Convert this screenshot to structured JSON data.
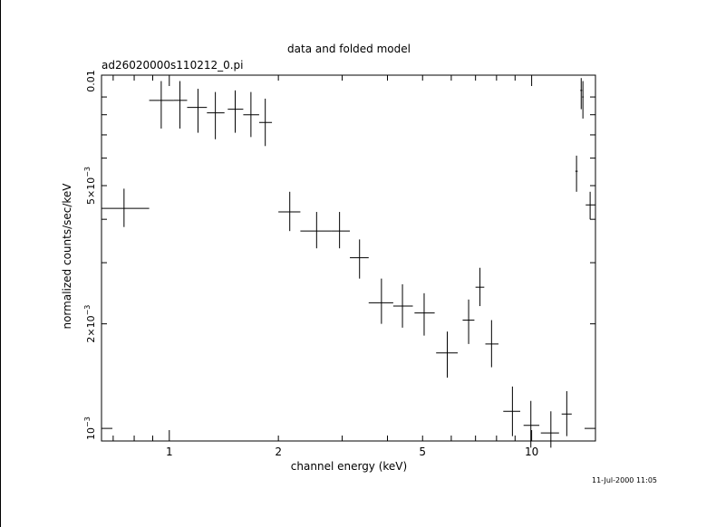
{
  "chart_data": {
    "type": "scatter",
    "title": "data and folded model",
    "subtitle": "ad26020000s110212_0.pi",
    "xlabel": "channel energy (keV)",
    "ylabel": "normalized counts/sec/keV",
    "timestamp": "11-Jul-2000 11:05",
    "x_scale": "log",
    "y_scale": "log",
    "xlim": [
      0.65,
      15.0
    ],
    "ylim": [
      0.00092,
      0.0104
    ],
    "grid": false,
    "x_ticks": [
      {
        "value": 1,
        "label": "1"
      },
      {
        "value": 2,
        "label": "2"
      },
      {
        "value": 5,
        "label": "5"
      },
      {
        "value": 10,
        "label": "10"
      }
    ],
    "y_ticks": [
      {
        "value": 0.001,
        "mant": "10",
        "exp": "−3"
      },
      {
        "value": 0.002,
        "mant": "2×10",
        "exp": "−3"
      },
      {
        "value": 0.005,
        "mant": "5×10",
        "exp": "−3"
      },
      {
        "value": 0.01,
        "mant": "0.01",
        "exp": ""
      }
    ],
    "series": [
      {
        "points": [
          {
            "x": 0.75,
            "xlo": 0.65,
            "xhi": 0.88,
            "y": 0.0043,
            "ylo": 0.0038,
            "yhi": 0.0049
          },
          {
            "x": 0.95,
            "xlo": 0.88,
            "xhi": 1.03,
            "y": 0.0088,
            "ylo": 0.0073,
            "yhi": 0.01
          },
          {
            "x": 1.07,
            "xlo": 1.03,
            "xhi": 1.12,
            "y": 0.0088,
            "ylo": 0.0073,
            "yhi": 0.01
          },
          {
            "x": 1.2,
            "xlo": 1.12,
            "xhi": 1.27,
            "y": 0.0084,
            "ylo": 0.0071,
            "yhi": 0.0095
          },
          {
            "x": 1.34,
            "xlo": 1.27,
            "xhi": 1.42,
            "y": 0.0081,
            "ylo": 0.0068,
            "yhi": 0.0093
          },
          {
            "x": 1.52,
            "xlo": 1.45,
            "xhi": 1.6,
            "y": 0.0083,
            "ylo": 0.0071,
            "yhi": 0.0094
          },
          {
            "x": 1.68,
            "xlo": 1.6,
            "xhi": 1.77,
            "y": 0.008,
            "ylo": 0.0069,
            "yhi": 0.0093
          },
          {
            "x": 1.84,
            "xlo": 1.77,
            "xhi": 1.92,
            "y": 0.0076,
            "ylo": 0.0065,
            "yhi": 0.0089
          },
          {
            "x": 2.15,
            "xlo": 2.0,
            "xhi": 2.3,
            "y": 0.0042,
            "ylo": 0.0037,
            "yhi": 0.0048
          },
          {
            "x": 2.55,
            "xlo": 2.3,
            "xhi": 2.8,
            "y": 0.0037,
            "ylo": 0.0033,
            "yhi": 0.0042
          },
          {
            "x": 2.95,
            "xlo": 2.8,
            "xhi": 3.15,
            "y": 0.0037,
            "ylo": 0.0033,
            "yhi": 0.0042
          },
          {
            "x": 3.35,
            "xlo": 3.15,
            "xhi": 3.55,
            "y": 0.0031,
            "ylo": 0.0027,
            "yhi": 0.0035
          },
          {
            "x": 3.85,
            "xlo": 3.55,
            "xhi": 4.15,
            "y": 0.0023,
            "ylo": 0.002,
            "yhi": 0.0027
          },
          {
            "x": 4.4,
            "xlo": 4.15,
            "xhi": 4.7,
            "y": 0.00225,
            "ylo": 0.00195,
            "yhi": 0.0026
          },
          {
            "x": 5.05,
            "xlo": 4.75,
            "xhi": 5.4,
            "y": 0.00215,
            "ylo": 0.00185,
            "yhi": 0.00245
          },
          {
            "x": 5.85,
            "xlo": 5.45,
            "xhi": 6.25,
            "y": 0.00165,
            "ylo": 0.0014,
            "yhi": 0.0019
          },
          {
            "x": 6.7,
            "xlo": 6.45,
            "xhi": 6.95,
            "y": 0.00205,
            "ylo": 0.00175,
            "yhi": 0.00235
          },
          {
            "x": 7.2,
            "xlo": 7.0,
            "xhi": 7.4,
            "y": 0.00255,
            "ylo": 0.00225,
            "yhi": 0.0029
          },
          {
            "x": 7.75,
            "xlo": 7.45,
            "xhi": 8.1,
            "y": 0.00175,
            "ylo": 0.0015,
            "yhi": 0.00205
          },
          {
            "x": 8.85,
            "xlo": 8.35,
            "xhi": 9.3,
            "y": 0.00112,
            "ylo": 0.00095,
            "yhi": 0.00132
          },
          {
            "x": 9.95,
            "xlo": 9.5,
            "xhi": 10.5,
            "y": 0.00102,
            "ylo": 0.00088,
            "yhi": 0.0012
          },
          {
            "x": 11.3,
            "xlo": 10.6,
            "xhi": 11.9,
            "y": 0.00097,
            "ylo": 0.00088,
            "yhi": 0.00112
          },
          {
            "x": 12.5,
            "xlo": 12.1,
            "xhi": 12.9,
            "y": 0.0011,
            "ylo": 0.00095,
            "yhi": 0.00128
          },
          {
            "x": 13.3,
            "xlo": 13.2,
            "xhi": 13.4,
            "y": 0.0055,
            "ylo": 0.0048,
            "yhi": 0.0061
          },
          {
            "x": 13.7,
            "xlo": 13.62,
            "xhi": 13.78,
            "y": 0.0094,
            "ylo": 0.0083,
            "yhi": 0.0102
          },
          {
            "x": 13.85,
            "xlo": 13.78,
            "xhi": 13.92,
            "y": 0.009,
            "ylo": 0.0078,
            "yhi": 0.01
          },
          {
            "x": 14.5,
            "xlo": 14.1,
            "xhi": 15.0,
            "y": 0.0044,
            "ylo": 0.004,
            "yhi": 0.0048
          }
        ]
      }
    ]
  }
}
